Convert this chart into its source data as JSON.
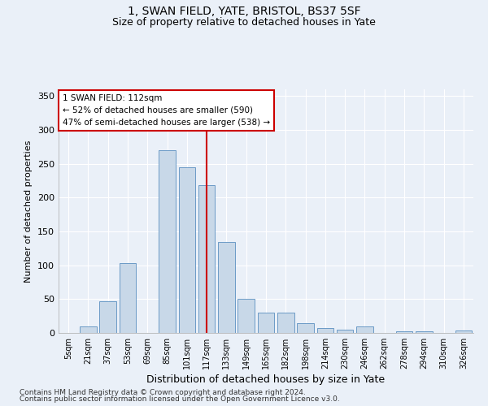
{
  "title1": "1, SWAN FIELD, YATE, BRISTOL, BS37 5SF",
  "title2": "Size of property relative to detached houses in Yate",
  "xlabel": "Distribution of detached houses by size in Yate",
  "ylabel": "Number of detached properties",
  "categories": [
    "5sqm",
    "21sqm",
    "37sqm",
    "53sqm",
    "69sqm",
    "85sqm",
    "101sqm",
    "117sqm",
    "133sqm",
    "149sqm",
    "165sqm",
    "182sqm",
    "198sqm",
    "214sqm",
    "230sqm",
    "246sqm",
    "262sqm",
    "278sqm",
    "294sqm",
    "310sqm",
    "326sqm"
  ],
  "values": [
    0,
    10,
    47,
    103,
    0,
    270,
    245,
    218,
    135,
    50,
    30,
    30,
    15,
    7,
    5,
    10,
    0,
    3,
    2,
    0,
    4
  ],
  "bar_color": "#c8d8e8",
  "bar_edge_color": "#5a8fc0",
  "vline_x_index": 7,
  "vline_color": "#cc0000",
  "annotation_text": "1 SWAN FIELD: 112sqm\n← 52% of detached houses are smaller (590)\n47% of semi-detached houses are larger (538) →",
  "annotation_box_color": "#cc0000",
  "ylim": [
    0,
    360
  ],
  "yticks": [
    0,
    50,
    100,
    150,
    200,
    250,
    300,
    350
  ],
  "bg_color": "#eaf0f8",
  "fig_bg_color": "#eaf0f8",
  "grid_color": "#ffffff",
  "footer1": "Contains HM Land Registry data © Crown copyright and database right 2024.",
  "footer2": "Contains public sector information licensed under the Open Government Licence v3.0."
}
